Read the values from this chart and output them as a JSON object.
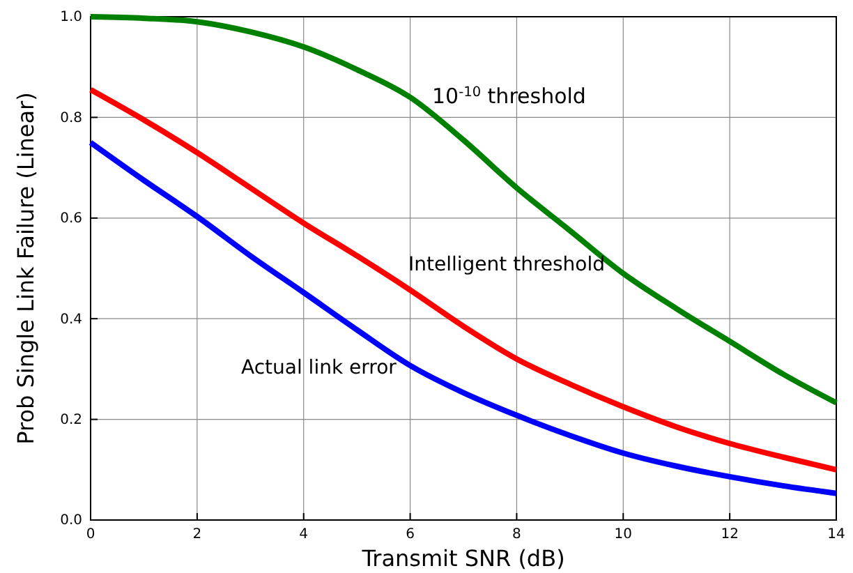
{
  "chart_data": {
    "type": "line",
    "xlabel": "Transmit SNR (dB)",
    "ylabel": "Prob Single Link Failure (Linear)",
    "x": [
      0,
      1,
      2,
      3,
      4,
      5,
      6,
      7,
      8,
      9,
      10,
      11,
      12,
      13,
      14
    ],
    "series": [
      {
        "color": "#008000",
        "values": [
          1.0,
          0.997,
          0.99,
          0.97,
          0.94,
          0.895,
          0.84,
          0.755,
          0.66,
          0.575,
          0.49,
          0.42,
          0.355,
          0.29,
          0.233
        ]
      },
      {
        "color": "#ff0000",
        "values": [
          0.855,
          0.795,
          0.73,
          0.66,
          0.59,
          0.525,
          0.457,
          0.385,
          0.32,
          0.27,
          0.225,
          0.185,
          0.152,
          0.125,
          0.1
        ]
      },
      {
        "color": "#0000ff",
        "values": [
          0.75,
          0.675,
          0.603,
          0.525,
          0.452,
          0.378,
          0.307,
          0.253,
          0.208,
          0.168,
          0.133,
          0.107,
          0.086,
          0.068,
          0.053
        ]
      }
    ],
    "xlim": [
      0,
      14
    ],
    "xticks": [
      0,
      2,
      4,
      6,
      8,
      10,
      12,
      14
    ],
    "ylim": [
      0,
      1
    ],
    "yticks": [
      {
        "value": 0,
        "label": "0.0"
      },
      {
        "value": 0.2,
        "label": "0.2"
      },
      {
        "value": 0.4,
        "label": "0.4"
      },
      {
        "value": 0.6,
        "label": "0.6"
      },
      {
        "value": 0.8,
        "label": "0.8"
      },
      {
        "value": 1,
        "label": "1.0"
      }
    ],
    "grid": true,
    "line_style": "solid",
    "marker": "none",
    "annotations": [
      "10$^{-10}$ threshold",
      "Intelligent threshold",
      "Actual link error"
    ]
  }
}
